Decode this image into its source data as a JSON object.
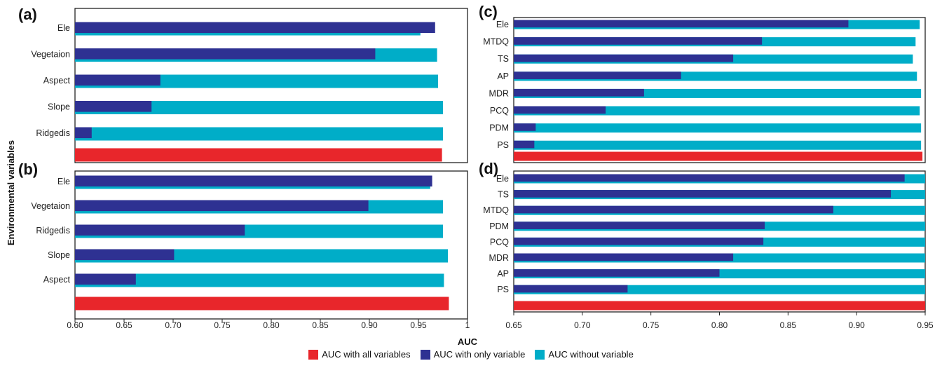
{
  "colors": {
    "all": "#e8262b",
    "only": "#2e3192",
    "without": "#00adc8"
  },
  "axis": {
    "ylabel": "Environmental variables",
    "xlabel": "AUC"
  },
  "legend": [
    {
      "label": "AUC with all variables",
      "color_key": "all"
    },
    {
      "label": "AUC with only variable",
      "color_key": "only"
    },
    {
      "label": "AUC without variable",
      "color_key": "without"
    }
  ],
  "chart_data": [
    {
      "type": "bar",
      "panel": "(a)",
      "xlim": [
        0.6,
        1.0
      ],
      "categories": [
        "Ele",
        "Vegetaion",
        "Aspect",
        "Slope",
        "Ridgedis"
      ],
      "series": [
        {
          "name": "AUC with only variable",
          "values": [
            0.967,
            0.906,
            0.687,
            0.678,
            0.617
          ]
        },
        {
          "name": "AUC without variable",
          "values": [
            0.952,
            0.969,
            0.97,
            0.975,
            0.975
          ]
        }
      ],
      "all_variables": 0.974
    },
    {
      "type": "bar",
      "panel": "(b)",
      "xlim": [
        0.6,
        1.0
      ],
      "categories": [
        "Ele",
        "Vegetaion",
        "Ridgedis",
        "Slope",
        "Aspect"
      ],
      "series": [
        {
          "name": "AUC with only variable",
          "values": [
            0.964,
            0.899,
            0.773,
            0.701,
            0.662
          ]
        },
        {
          "name": "AUC without variable",
          "values": [
            0.962,
            0.975,
            0.975,
            0.98,
            0.976
          ]
        }
      ],
      "all_variables": 0.981
    },
    {
      "type": "bar",
      "panel": "(c)",
      "xlim": [
        0.65,
        0.95
      ],
      "categories": [
        "Ele",
        "MTDQ",
        "TS",
        "AP",
        "MDR",
        "PCQ",
        "PDM",
        "PS"
      ],
      "series": [
        {
          "name": "AUC with only variable",
          "values": [
            0.894,
            0.831,
            0.81,
            0.772,
            0.745,
            0.717,
            0.666,
            0.665
          ]
        },
        {
          "name": "AUC without variable",
          "values": [
            0.946,
            0.943,
            0.941,
            0.944,
            0.947,
            0.946,
            0.947,
            0.947
          ]
        }
      ],
      "all_variables": 0.948
    },
    {
      "type": "bar",
      "panel": "(d)",
      "xlim": [
        0.65,
        0.95
      ],
      "categories": [
        "Ele",
        "TS",
        "MTDQ",
        "PDM",
        "PCQ",
        "MDR",
        "AP",
        "PS"
      ],
      "series": [
        {
          "name": "AUC with only variable",
          "values": [
            0.935,
            0.925,
            0.883,
            0.833,
            0.832,
            0.81,
            0.8,
            0.733
          ]
        },
        {
          "name": "AUC without variable",
          "values": [
            0.95,
            0.95,
            0.95,
            0.95,
            0.95,
            0.95,
            0.95,
            0.95
          ]
        }
      ],
      "all_variables": 0.95
    }
  ],
  "ticks": {
    "left": [
      "0.60",
      "0.65",
      "0.70",
      "0.75",
      "0.80",
      "0.85",
      "0.90",
      "0.95",
      "1"
    ],
    "right": [
      "0.65",
      "0.70",
      "0.75",
      "0.80",
      "0.85",
      "0.90",
      "0.95"
    ]
  }
}
